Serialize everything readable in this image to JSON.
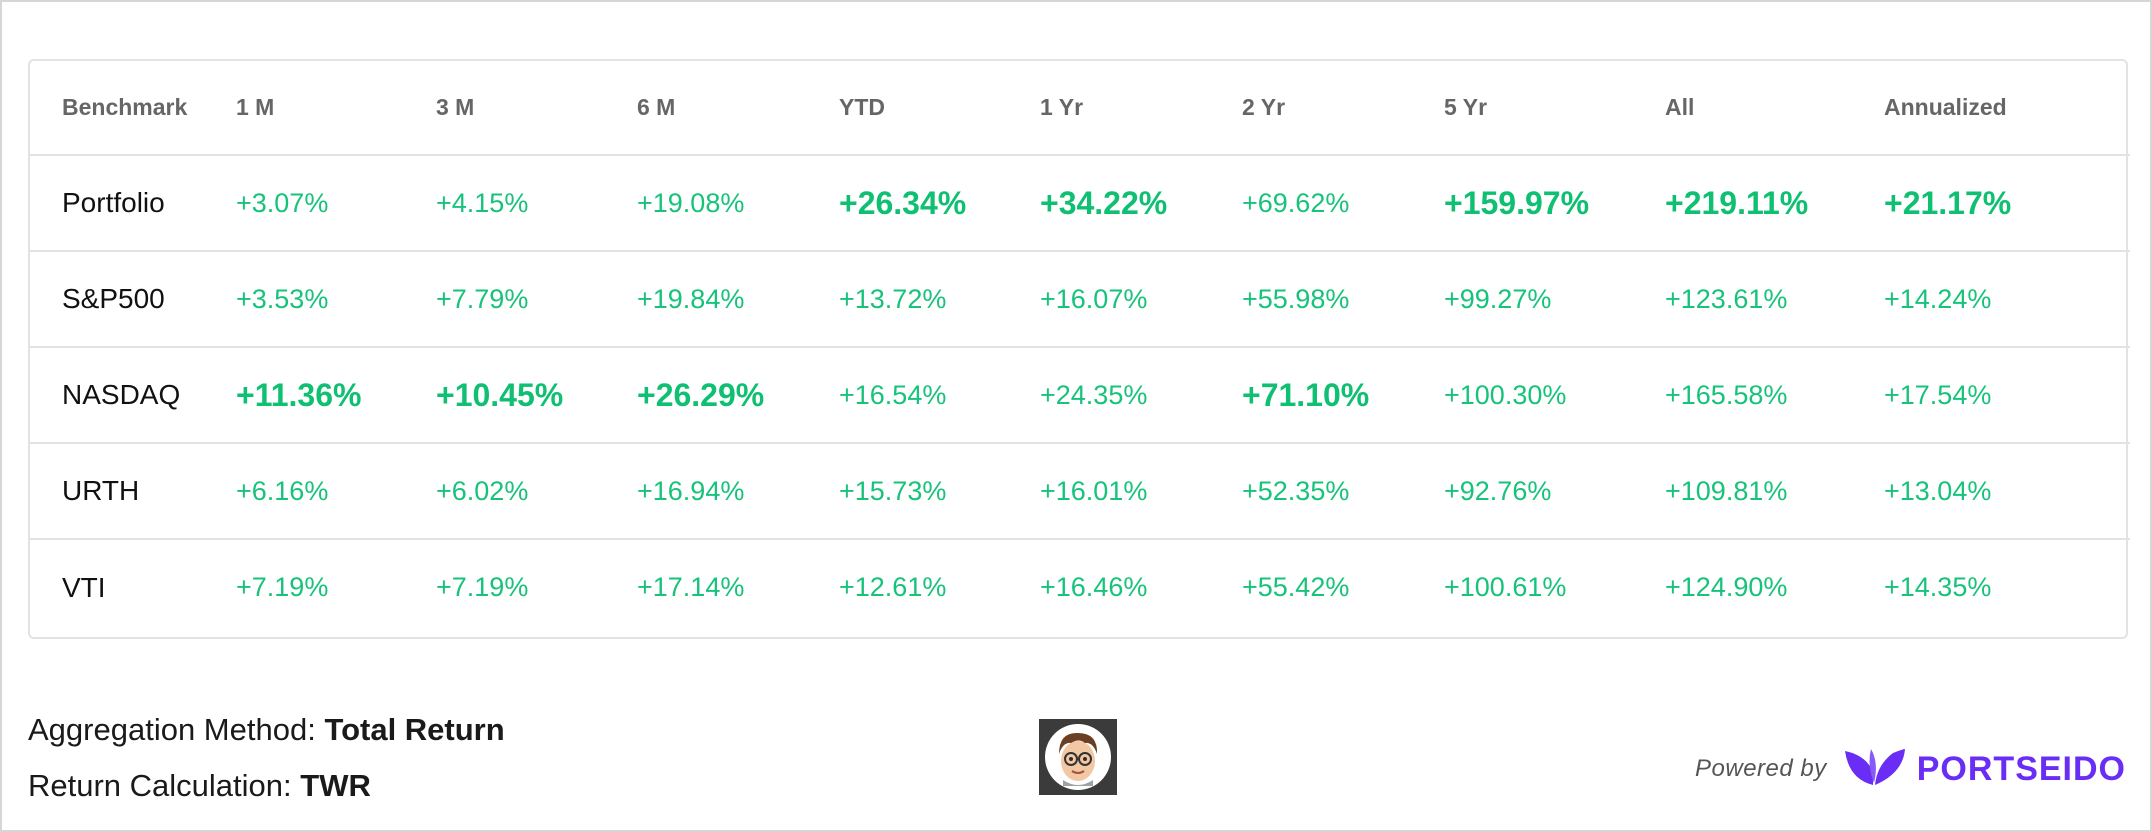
{
  "table": {
    "headers": [
      "Benchmark",
      "1 M",
      "3 M",
      "6 M",
      "YTD",
      "1 Yr",
      "2 Yr",
      "5 Yr",
      "All",
      "Annualized"
    ],
    "rows": [
      {
        "name": "Portfolio",
        "values": [
          "+3.07%",
          "+4.15%",
          "+19.08%",
          "+26.34%",
          "+34.22%",
          "+69.62%",
          "+159.97%",
          "+219.11%",
          "+21.17%"
        ],
        "highlight": [
          false,
          false,
          false,
          true,
          true,
          false,
          true,
          true,
          true
        ]
      },
      {
        "name": "S&P500",
        "values": [
          "+3.53%",
          "+7.79%",
          "+19.84%",
          "+13.72%",
          "+16.07%",
          "+55.98%",
          "+99.27%",
          "+123.61%",
          "+14.24%"
        ],
        "highlight": [
          false,
          false,
          false,
          false,
          false,
          false,
          false,
          false,
          false
        ]
      },
      {
        "name": "NASDAQ",
        "values": [
          "+11.36%",
          "+10.45%",
          "+26.29%",
          "+16.54%",
          "+24.35%",
          "+71.10%",
          "+100.30%",
          "+165.58%",
          "+17.54%"
        ],
        "highlight": [
          true,
          true,
          true,
          false,
          false,
          true,
          false,
          false,
          false
        ]
      },
      {
        "name": "URTH",
        "values": [
          "+6.16%",
          "+6.02%",
          "+16.94%",
          "+15.73%",
          "+16.01%",
          "+52.35%",
          "+92.76%",
          "+109.81%",
          "+13.04%"
        ],
        "highlight": [
          false,
          false,
          false,
          false,
          false,
          false,
          false,
          false,
          false
        ]
      },
      {
        "name": "VTI",
        "values": [
          "+7.19%",
          "+7.19%",
          "+17.14%",
          "+12.61%",
          "+16.46%",
          "+55.42%",
          "+100.61%",
          "+124.90%",
          "+14.35%"
        ],
        "highlight": [
          false,
          false,
          false,
          false,
          false,
          false,
          false,
          false,
          false
        ]
      }
    ]
  },
  "footer": {
    "aggregation_label": "Aggregation Method:",
    "aggregation_value": "Total Return",
    "calculation_label": "Return Calculation:",
    "calculation_value": "TWR",
    "powered_by": "Powered by",
    "brand": "PORTSEIDO",
    "avatar_icon": "memoji-avatar-icon"
  },
  "colors": {
    "positive": "#17c37b",
    "brand": "#6a2df5",
    "header_text": "#666666",
    "border": "#e3e3e3"
  }
}
